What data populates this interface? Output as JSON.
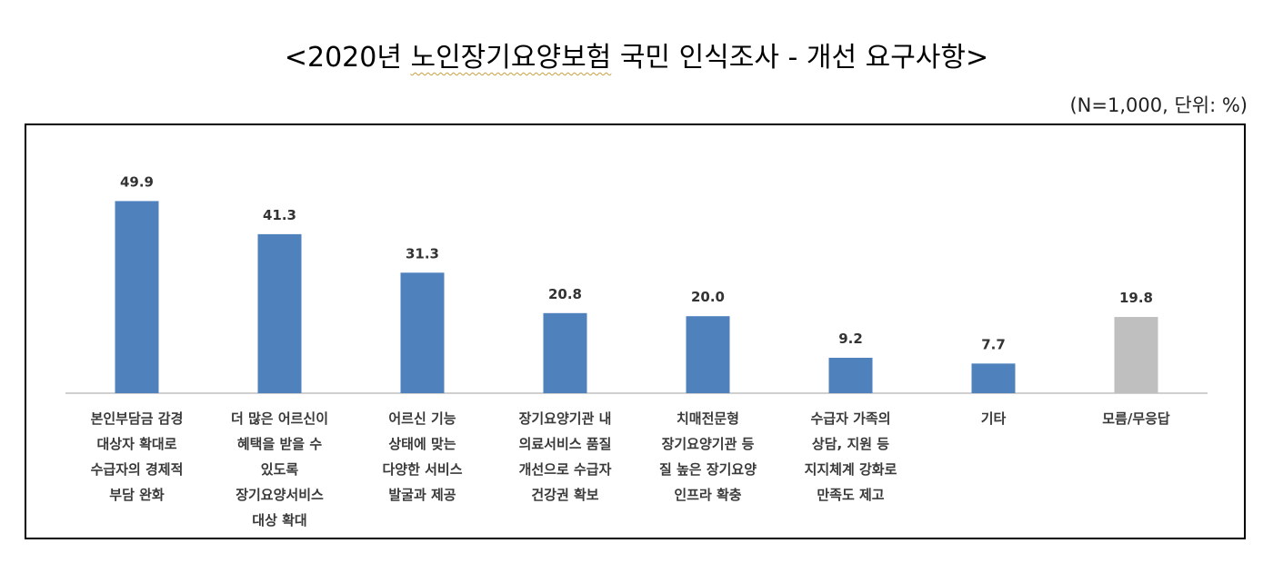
{
  "title_prefix": "<2020년 ",
  "title_underlined": "노인장기요양보험",
  "title_suffix": " 국민 인식조사 - 개선 요구사항>",
  "note": "(N=1,000, 단위: %)",
  "colors": {
    "primary": "#4f81bd",
    "other": "#bfbfbf",
    "axis": "#bfbfbf"
  },
  "chart_data": {
    "type": "bar",
    "title": "<2020년 노인장기요양보험 국민 인식조사 - 개선 요구사항>",
    "categories": [
      [
        "본인부담금 감경",
        "대상자 확대로",
        "수급자의 경제적",
        "부담 완화"
      ],
      [
        "더 많은 어르신이",
        "혜택을 받을 수",
        "있도록",
        "장기요양서비스",
        "대상 확대"
      ],
      [
        "어르신 기능",
        "상태에 맞는",
        "다양한 서비스",
        "발굴과 제공"
      ],
      [
        "장기요양기관 내",
        "의료서비스 품질",
        "개선으로 수급자",
        "건강권 확보"
      ],
      [
        "치매전문형",
        "장기요양기관 등",
        "질 높은 장기요양",
        "인프라 확충"
      ],
      [
        "수급자 가족의",
        "상담, 지원 등",
        "지지체계 강화로",
        "만족도 제고"
      ],
      [
        "기타"
      ],
      [
        "모름/무응답"
      ]
    ],
    "values": [
      49.9,
      41.3,
      31.3,
      20.8,
      20.0,
      9.2,
      7.7,
      19.8
    ],
    "value_labels": [
      "49.9",
      "41.3",
      "31.3",
      "20.8",
      "20.0",
      "9.2",
      "7.7",
      "19.8"
    ],
    "highlight_last": true,
    "ylim": [
      0,
      55
    ],
    "grid": false,
    "legend": "none"
  }
}
